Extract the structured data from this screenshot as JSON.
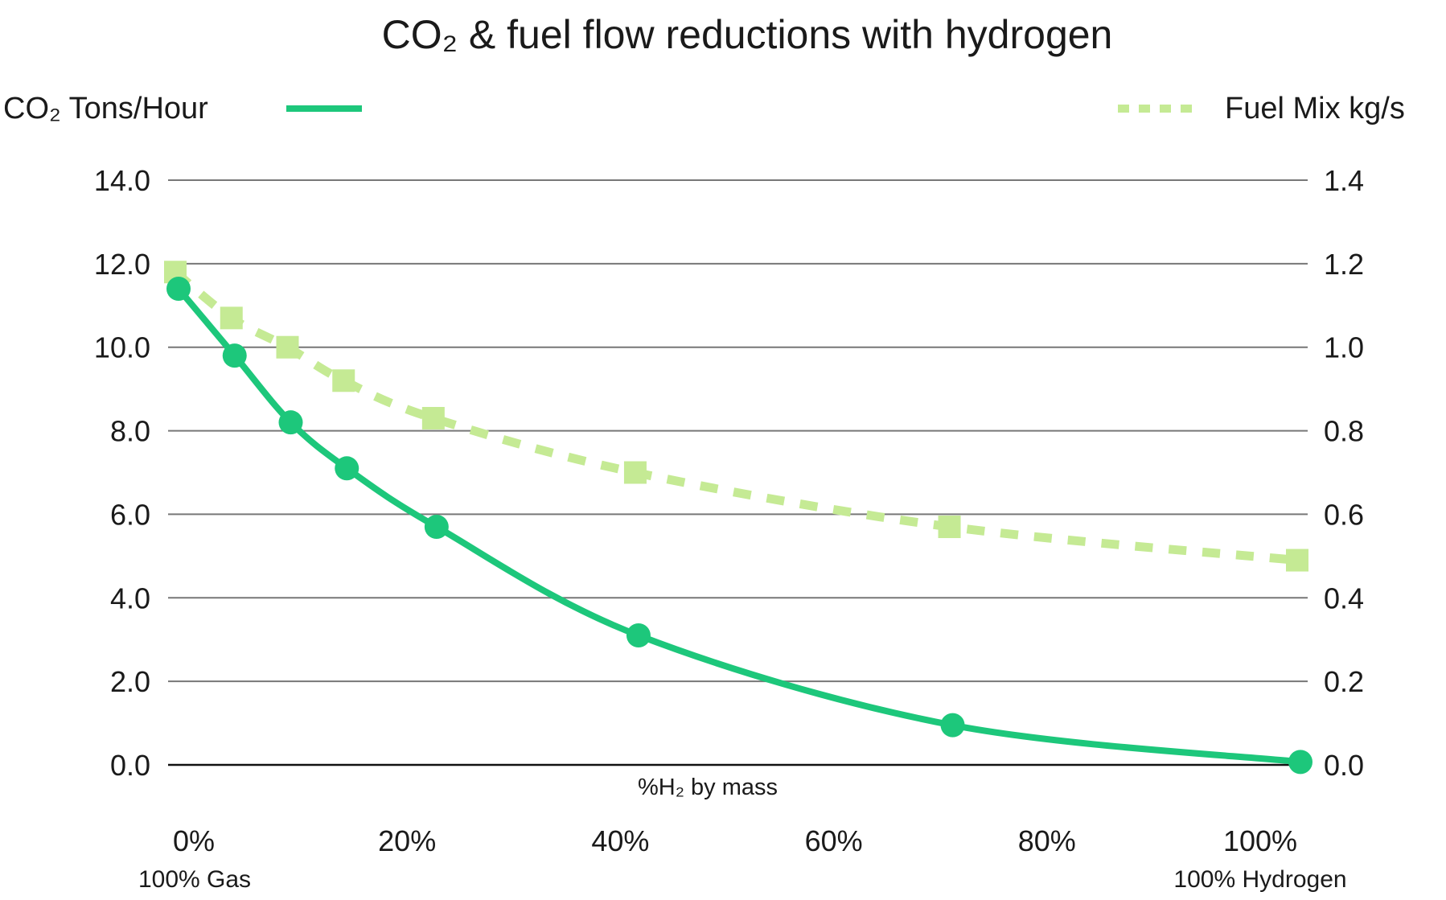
{
  "chart_data": {
    "type": "line",
    "title": "CO₂ & fuel flow reductions with hydrogen",
    "xlabel": "%H₂ by mass",
    "x_tick_labels": [
      "0%",
      "20%",
      "40%",
      "60%",
      "80%",
      "100%"
    ],
    "x_ticks": [
      0,
      20,
      40,
      60,
      80,
      100
    ],
    "x_end_labels": {
      "left": "100% Gas",
      "right": "100% Hydrogen"
    },
    "xlim": [
      0,
      100
    ],
    "y_left": {
      "ylim": [
        0,
        14
      ],
      "ticks": [
        0,
        2,
        4,
        6,
        8,
        10,
        12,
        14
      ],
      "tick_labels": [
        "0.0",
        "2.0",
        "4.0",
        "6.0",
        "8.0",
        "10.0",
        "12.0",
        "14.0"
      ]
    },
    "y_right": {
      "ylim": [
        0,
        1.4
      ],
      "ticks": [
        0,
        0.2,
        0.4,
        0.6,
        0.8,
        1.0,
        1.2,
        1.4
      ],
      "tick_labels": [
        "0.0",
        "0.2",
        "0.4",
        "0.6",
        "0.8",
        "1.0",
        "1.2",
        "1.4"
      ]
    },
    "grid": true,
    "series": [
      {
        "name": "CO₂ Tons/Hour",
        "axis": "left",
        "style": "solid",
        "marker": "circle",
        "color": "#1DC77B",
        "x": [
          0,
          5,
          10,
          15,
          23,
          41,
          69,
          100
        ],
        "y": [
          11.4,
          9.8,
          8.2,
          7.1,
          5.7,
          3.1,
          0.95,
          0.07
        ]
      },
      {
        "name": "Fuel Mix kg/s",
        "axis": "right",
        "style": "dashed",
        "marker": "square",
        "color": "#C5EA94",
        "x": [
          0,
          5,
          10,
          15,
          23,
          41,
          69,
          100
        ],
        "y": [
          1.18,
          1.07,
          1.0,
          0.92,
          0.83,
          0.7,
          0.57,
          0.49
        ]
      }
    ],
    "legend": {
      "co2_label": "CO₂ Tons/Hour",
      "fuel_label": "Fuel Mix kg/s",
      "placement": "top"
    }
  }
}
